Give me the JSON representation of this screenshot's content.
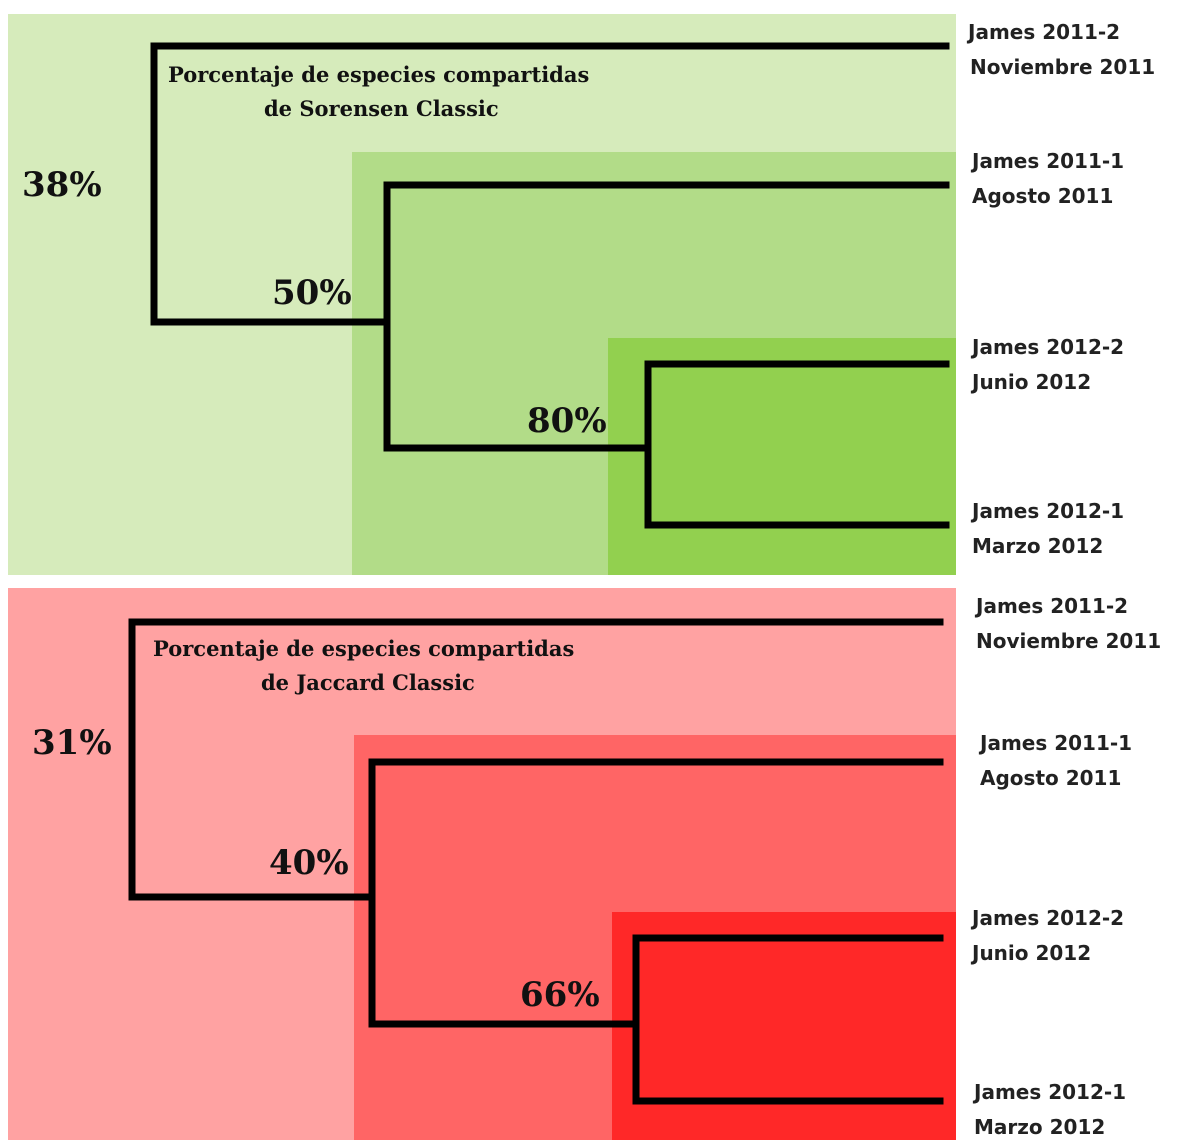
{
  "colors": {
    "sorensen_outer": "#d6ebbb",
    "sorensen_mid": "#b2dc88",
    "sorensen_inner": "#92d04f",
    "jaccard_outer": "#ffa2a2",
    "jaccard_mid": "#ff6565",
    "jaccard_inner": "#ff2828",
    "branch": "#000000"
  },
  "sorensen": {
    "title_line1": "Porcentaje de especies compartidas",
    "title_line2": "de Sorensen Classic",
    "pct_root": "38%",
    "pct_mid": "50%",
    "pct_inner": "80%",
    "leaves": [
      {
        "name": "James 2011-2",
        "date": "Noviembre 2011"
      },
      {
        "name": "James 2011-1",
        "date": "Agosto 2011"
      },
      {
        "name": "James 2012-2",
        "date": "Junio 2012"
      },
      {
        "name": "James 2012-1",
        "date": "Marzo 2012"
      }
    ]
  },
  "jaccard": {
    "title_line1": "Porcentaje de especies compartidas",
    "title_line2": "de Jaccard Classic",
    "pct_root": "31%",
    "pct_mid": "40%",
    "pct_inner": "66%",
    "leaves": [
      {
        "name": "James 2011-2",
        "date": "Noviembre 2011"
      },
      {
        "name": "James 2011-1",
        "date": "Agosto 2011"
      },
      {
        "name": "James 2012-2",
        "date": "Junio 2012"
      },
      {
        "name": "James 2012-1",
        "date": "Marzo 2012"
      }
    ]
  }
}
